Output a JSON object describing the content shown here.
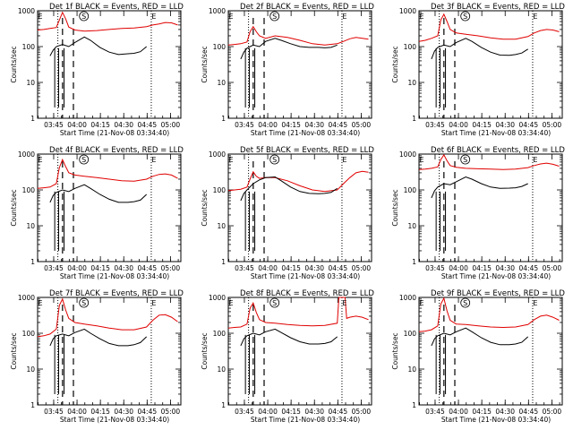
{
  "chart_data": [
    {
      "type": "line",
      "title": "Det 1f BLACK = Events, RED = LLD",
      "xlabel": "Start Time (21-Nov-08 03:34:40)",
      "ylabel": "Counts/sec",
      "x_ticks": [
        "03:45",
        "04:00",
        "04:15",
        "04:30",
        "04:45",
        "05:00"
      ],
      "y_ticks": [
        "1",
        "10",
        "100",
        "1000"
      ],
      "ylim": [
        1,
        1000
      ],
      "xlim_minutes": [
        0,
        92
      ],
      "log_y": true,
      "markers": [
        "E",
        "S",
        "E"
      ],
      "marker_times": [
        0,
        28,
        73
      ],
      "dotted_lines_minutes": [
        13,
        73
      ],
      "dashed_lines_minutes": [
        16,
        23
      ],
      "series": [
        {
          "name": "LLD",
          "color": "#e00000",
          "x": [
            0,
            4,
            8,
            12,
            14,
            16,
            18,
            20,
            24,
            30,
            38,
            46,
            54,
            62,
            70,
            74,
            78,
            82,
            86,
            90
          ],
          "y": [
            290,
            300,
            320,
            340,
            550,
            900,
            600,
            350,
            290,
            270,
            280,
            300,
            320,
            330,
            360,
            400,
            430,
            470,
            460,
            400
          ]
        },
        {
          "name": "Events",
          "color": "#000000",
          "x": [
            8,
            10,
            12,
            16,
            20,
            24,
            30,
            34,
            40,
            46,
            52,
            58,
            62,
            66,
            70
          ],
          "y": [
            55,
            80,
            100,
            115,
            100,
            130,
            185,
            150,
            95,
            70,
            60,
            63,
            65,
            72,
            100
          ]
        }
      ]
    },
    {
      "type": "line",
      "title": "Det 2f BLACK = Events, RED = LLD",
      "xlabel": "Start Time (21-Nov-08 03:34:40)",
      "ylabel": "Counts/sec",
      "x_ticks": [
        "03:45",
        "04:00",
        "04:15",
        "04:30",
        "04:45",
        "05:00"
      ],
      "y_ticks": [
        "1",
        "10",
        "100",
        "1000"
      ],
      "ylim": [
        1,
        1000
      ],
      "xlim_minutes": [
        0,
        92
      ],
      "log_y": true,
      "markers": [
        "E",
        "S",
        "E"
      ],
      "marker_times": [
        0,
        28,
        73
      ],
      "dotted_lines_minutes": [
        13,
        73
      ],
      "dashed_lines_minutes": [
        16,
        23
      ],
      "series": [
        {
          "name": "LLD",
          "color": "#e00000",
          "x": [
            0,
            4,
            8,
            12,
            14,
            16,
            18,
            20,
            24,
            30,
            38,
            46,
            54,
            62,
            70,
            74,
            78,
            82,
            86,
            90
          ],
          "y": [
            110,
            115,
            120,
            135,
            260,
            360,
            260,
            200,
            170,
            200,
            180,
            150,
            120,
            110,
            120,
            140,
            165,
            180,
            170,
            160
          ]
        },
        {
          "name": "Events",
          "color": "#000000",
          "x": [
            8,
            10,
            12,
            16,
            20,
            24,
            30,
            34,
            40,
            46,
            52,
            58,
            62,
            66,
            70
          ],
          "y": [
            45,
            70,
            90,
            110,
            100,
            140,
            170,
            150,
            120,
            100,
            95,
            95,
            92,
            95,
            110
          ]
        }
      ]
    },
    {
      "type": "line",
      "title": "Det 3f BLACK = Events, RED = LLD",
      "xlabel": "Start Time (21-Nov-08 03:34:40)",
      "ylabel": "Counts/sec",
      "x_ticks": [
        "03:45",
        "04:00",
        "04:15",
        "04:30",
        "04:45",
        "05:00"
      ],
      "y_ticks": [
        "1",
        "10",
        "100",
        "1000"
      ],
      "ylim": [
        1,
        1000
      ],
      "xlim_minutes": [
        0,
        92
      ],
      "log_y": true,
      "markers": [
        "E",
        "S",
        "E"
      ],
      "marker_times": [
        0,
        28,
        73
      ],
      "dotted_lines_minutes": [
        13,
        73
      ],
      "dashed_lines_minutes": [
        16,
        23
      ],
      "series": [
        {
          "name": "LLD",
          "color": "#e00000",
          "x": [
            0,
            4,
            8,
            12,
            14,
            16,
            18,
            20,
            24,
            30,
            38,
            46,
            54,
            62,
            70,
            74,
            78,
            82,
            86,
            90
          ],
          "y": [
            140,
            150,
            170,
            200,
            550,
            800,
            500,
            300,
            240,
            220,
            200,
            175,
            160,
            160,
            190,
            240,
            280,
            300,
            290,
            260
          ]
        },
        {
          "name": "Events",
          "color": "#000000",
          "x": [
            8,
            10,
            12,
            16,
            20,
            24,
            30,
            34,
            40,
            46,
            52,
            58,
            62,
            66,
            70
          ],
          "y": [
            45,
            75,
            95,
            110,
            100,
            130,
            170,
            140,
            95,
            70,
            58,
            57,
            60,
            66,
            85
          ]
        }
      ]
    },
    {
      "type": "line",
      "title": "Det 4f BLACK = Events, RED = LLD",
      "xlabel": "Start Time (21-Nov-08 03:34:40)",
      "ylabel": "Counts/sec",
      "x_ticks": [
        "03:45",
        "04:00",
        "04:15",
        "04:30",
        "04:45",
        "05:00"
      ],
      "y_ticks": [
        "1",
        "10",
        "100",
        "1000"
      ],
      "ylim": [
        1,
        1000
      ],
      "xlim_minutes": [
        0,
        92
      ],
      "log_y": true,
      "markers": [
        "E",
        "S",
        "E"
      ],
      "marker_times": [
        0,
        28,
        73
      ],
      "dotted_lines_minutes": [
        13,
        73
      ],
      "dashed_lines_minutes": [
        16,
        23
      ],
      "series": [
        {
          "name": "LLD",
          "color": "#e00000",
          "x": [
            0,
            4,
            8,
            12,
            14,
            16,
            18,
            20,
            24,
            30,
            38,
            46,
            54,
            62,
            70,
            74,
            78,
            82,
            86,
            90
          ],
          "y": [
            110,
            115,
            120,
            150,
            420,
            700,
            450,
            300,
            260,
            240,
            220,
            200,
            180,
            175,
            200,
            240,
            270,
            280,
            260,
            210
          ]
        },
        {
          "name": "Events",
          "color": "#000000",
          "x": [
            8,
            10,
            12,
            16,
            20,
            24,
            30,
            34,
            40,
            46,
            52,
            58,
            62,
            66,
            70
          ],
          "y": [
            45,
            70,
            85,
            100,
            90,
            110,
            140,
            110,
            75,
            55,
            45,
            45,
            47,
            52,
            75
          ]
        }
      ]
    },
    {
      "type": "line",
      "title": "Det 5f BLACK = Events, RED = LLD",
      "xlabel": "Start Time (21-Nov-08 03:34:40)",
      "ylabel": "Counts/sec",
      "x_ticks": [
        "03:45",
        "04:00",
        "04:15",
        "04:30",
        "04:45",
        "05:00"
      ],
      "y_ticks": [
        "1",
        "10",
        "100",
        "1000"
      ],
      "ylim": [
        1,
        1000
      ],
      "xlim_minutes": [
        0,
        92
      ],
      "log_y": true,
      "markers": [
        "E",
        "S",
        "E"
      ],
      "marker_times": [
        0,
        28,
        73
      ],
      "dotted_lines_minutes": [
        13,
        73
      ],
      "dashed_lines_minutes": [
        16,
        23
      ],
      "series": [
        {
          "name": "LLD",
          "color": "#e00000",
          "x": [
            0,
            4,
            8,
            12,
            14,
            16,
            18,
            20,
            24,
            30,
            38,
            46,
            54,
            62,
            70,
            74,
            78,
            82,
            86,
            90
          ],
          "y": [
            95,
            100,
            105,
            120,
            200,
            320,
            240,
            210,
            220,
            220,
            180,
            130,
            100,
            90,
            100,
            150,
            220,
            300,
            330,
            310
          ]
        },
        {
          "name": "Events",
          "color": "#000000",
          "x": [
            8,
            10,
            12,
            16,
            20,
            24,
            30,
            34,
            40,
            46,
            52,
            58,
            62,
            66,
            70
          ],
          "y": [
            50,
            80,
            100,
            150,
            190,
            220,
            230,
            180,
            120,
            90,
            80,
            78,
            80,
            85,
            110
          ]
        }
      ]
    },
    {
      "type": "line",
      "title": "Det 6f BLACK = Events, RED = LLD",
      "xlabel": "Start Time (21-Nov-08 03:34:40)",
      "ylabel": "Counts/sec",
      "x_ticks": [
        "03:45",
        "04:00",
        "04:15",
        "04:30",
        "04:45",
        "05:00"
      ],
      "y_ticks": [
        "1",
        "10",
        "100",
        "1000"
      ],
      "ylim": [
        1,
        1000
      ],
      "xlim_minutes": [
        0,
        92
      ],
      "log_y": true,
      "markers": [
        "E",
        "S",
        "E"
      ],
      "marker_times": [
        0,
        28,
        73
      ],
      "dotted_lines_minutes": [
        13,
        73
      ],
      "dashed_lines_minutes": [
        16,
        23
      ],
      "series": [
        {
          "name": "LLD",
          "color": "#e00000",
          "x": [
            0,
            4,
            8,
            12,
            14,
            16,
            18,
            20,
            24,
            30,
            38,
            46,
            54,
            62,
            70,
            74,
            78,
            82,
            86,
            90
          ],
          "y": [
            370,
            380,
            400,
            440,
            700,
            950,
            650,
            480,
            430,
            400,
            390,
            380,
            370,
            380,
            420,
            480,
            530,
            560,
            520,
            460
          ]
        },
        {
          "name": "Events",
          "color": "#000000",
          "x": [
            8,
            10,
            12,
            16,
            20,
            24,
            30,
            34,
            40,
            46,
            52,
            58,
            62,
            66,
            70
          ],
          "y": [
            60,
            95,
            120,
            150,
            140,
            170,
            230,
            200,
            150,
            120,
            110,
            112,
            115,
            125,
            150
          ]
        }
      ]
    },
    {
      "type": "line",
      "title": "Det 7f BLACK = Events, RED = LLD",
      "xlabel": "Start Time (21-Nov-08 03:34:40)",
      "ylabel": "Counts/sec",
      "x_ticks": [
        "03:45",
        "04:00",
        "04:15",
        "04:30",
        "04:45",
        "05:00"
      ],
      "y_ticks": [
        "1",
        "10",
        "100",
        "1000"
      ],
      "ylim": [
        1,
        1000
      ],
      "xlim_minutes": [
        0,
        92
      ],
      "log_y": true,
      "markers": [
        "E",
        "S",
        "E"
      ],
      "marker_times": [
        0,
        28,
        73
      ],
      "dotted_lines_minutes": [
        13,
        73
      ],
      "dashed_lines_minutes": [
        16,
        23
      ],
      "series": [
        {
          "name": "LLD",
          "color": "#e00000",
          "x": [
            0,
            4,
            8,
            12,
            14,
            16,
            18,
            20,
            24,
            30,
            38,
            46,
            54,
            62,
            70,
            74,
            78,
            82,
            86,
            90
          ],
          "y": [
            80,
            85,
            95,
            130,
            600,
            900,
            450,
            260,
            200,
            180,
            160,
            140,
            125,
            125,
            150,
            230,
            320,
            330,
            280,
            210
          ]
        },
        {
          "name": "Events",
          "color": "#000000",
          "x": [
            8,
            10,
            12,
            16,
            20,
            24,
            30,
            34,
            40,
            46,
            52,
            58,
            62,
            66,
            70
          ],
          "y": [
            45,
            70,
            85,
            95,
            85,
            105,
            130,
            100,
            70,
            52,
            45,
            45,
            48,
            55,
            80
          ]
        }
      ]
    },
    {
      "type": "line",
      "title": "Det 8f BLACK = Events, RED = LLD",
      "xlabel": "Start Time (21-Nov-08 03:34:40)",
      "ylabel": "Counts/sec",
      "x_ticks": [
        "03:45",
        "04:00",
        "04:15",
        "04:30",
        "04:45",
        "05:00"
      ],
      "y_ticks": [
        "1",
        "10",
        "100",
        "1000"
      ],
      "ylim": [
        1,
        1000
      ],
      "xlim_minutes": [
        0,
        92
      ],
      "log_y": true,
      "markers": [
        "E",
        "S",
        "E"
      ],
      "marker_times": [
        0,
        28,
        73
      ],
      "dotted_lines_minutes": [
        13,
        73
      ],
      "dashed_lines_minutes": [
        16,
        23
      ],
      "series": [
        {
          "name": "LLD",
          "color": "#e00000",
          "x": [
            0,
            4,
            8,
            12,
            14,
            16,
            18,
            20,
            24,
            30,
            38,
            46,
            54,
            62,
            70,
            71,
            72,
            74,
            75,
            76,
            78,
            82,
            86,
            90
          ],
          "y": [
            140,
            145,
            150,
            180,
            500,
            700,
            380,
            240,
            200,
            190,
            175,
            165,
            160,
            165,
            190,
            1000,
            1000,
            1000,
            1000,
            260,
            280,
            300,
            280,
            240
          ]
        },
        {
          "name": "Events",
          "color": "#000000",
          "x": [
            8,
            10,
            12,
            16,
            20,
            24,
            30,
            34,
            40,
            46,
            52,
            58,
            62,
            66,
            70
          ],
          "y": [
            45,
            70,
            85,
            100,
            90,
            110,
            130,
            105,
            75,
            58,
            50,
            50,
            52,
            58,
            80
          ]
        }
      ]
    },
    {
      "type": "line",
      "title": "Det 9f BLACK = Events, RED = LLD",
      "xlabel": "Start Time (21-Nov-08 03:34:40)",
      "ylabel": "Counts/sec",
      "x_ticks": [
        "03:45",
        "04:00",
        "04:15",
        "04:30",
        "04:45",
        "05:00"
      ],
      "y_ticks": [
        "1",
        "10",
        "100",
        "1000"
      ],
      "ylim": [
        1,
        1000
      ],
      "xlim_minutes": [
        0,
        92
      ],
      "log_y": true,
      "markers": [
        "E",
        "S",
        "E"
      ],
      "marker_times": [
        0,
        28,
        73
      ],
      "dotted_lines_minutes": [
        13,
        73
      ],
      "dashed_lines_minutes": [
        16,
        23
      ],
      "series": [
        {
          "name": "LLD",
          "color": "#e00000",
          "x": [
            0,
            4,
            8,
            12,
            14,
            16,
            18,
            20,
            24,
            30,
            38,
            46,
            54,
            62,
            70,
            74,
            78,
            82,
            86,
            90
          ],
          "y": [
            110,
            115,
            125,
            160,
            650,
            950,
            420,
            230,
            180,
            175,
            160,
            150,
            145,
            150,
            175,
            240,
            300,
            320,
            280,
            230
          ]
        },
        {
          "name": "Events",
          "color": "#000000",
          "x": [
            8,
            10,
            12,
            16,
            20,
            24,
            30,
            34,
            40,
            46,
            52,
            58,
            62,
            66,
            70
          ],
          "y": [
            45,
            70,
            85,
            100,
            90,
            110,
            140,
            110,
            75,
            56,
            48,
            48,
            50,
            56,
            80
          ]
        }
      ]
    }
  ]
}
